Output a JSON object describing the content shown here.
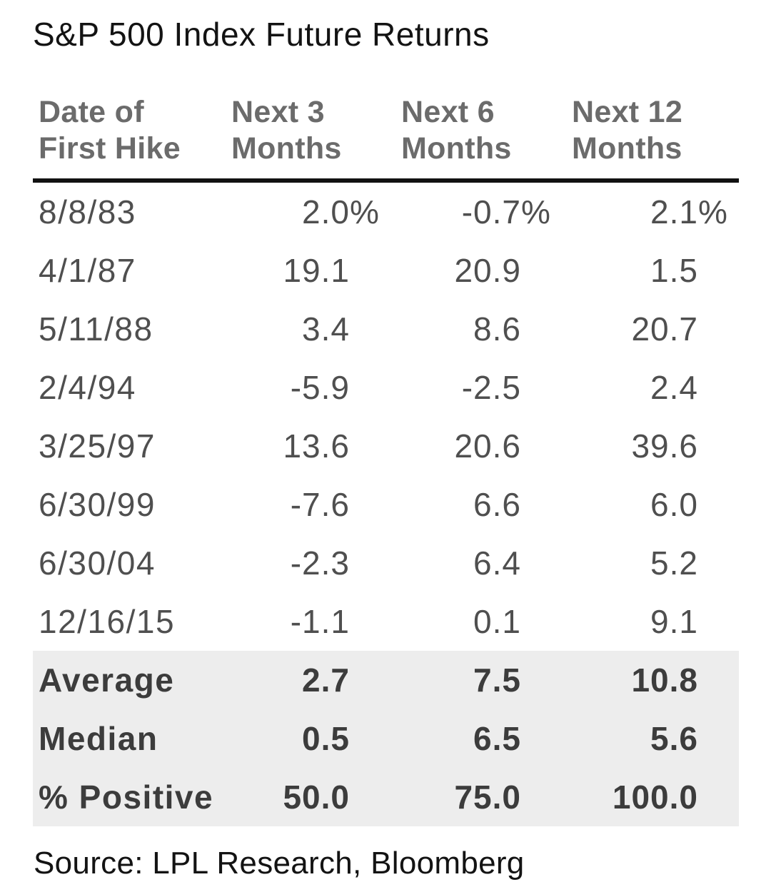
{
  "title": "S&P 500 Index Future Returns",
  "source": "Source: LPL Research, Bloomberg",
  "colors": {
    "background": "#ffffff",
    "title_text": "#131313",
    "header_text": "#6b6b6b",
    "body_text": "#4f4f4f",
    "summary_text": "#3c3c3c",
    "summary_band": "#ededed",
    "header_rule": "#111111"
  },
  "table": {
    "headers": [
      {
        "line1": "Date of",
        "line2": "First Hike"
      },
      {
        "line1": "Next 3",
        "line2": "Months"
      },
      {
        "line1": "Next 6",
        "line2": "Months"
      },
      {
        "line1": "Next 12",
        "line2": "Months"
      }
    ],
    "rows": [
      {
        "date": "8/8/83",
        "v1": "2.0",
        "v2": "-0.7",
        "v3": "2.1",
        "suffix": "%"
      },
      {
        "date": "4/1/87",
        "v1": "19.1",
        "v2": "20.9",
        "v3": "1.5",
        "suffix": ""
      },
      {
        "date": "5/11/88",
        "v1": "3.4",
        "v2": "8.6",
        "v3": "20.7",
        "suffix": ""
      },
      {
        "date": "2/4/94",
        "v1": "-5.9",
        "v2": "-2.5",
        "v3": "2.4",
        "suffix": ""
      },
      {
        "date": "3/25/97",
        "v1": "13.6",
        "v2": "20.6",
        "v3": "39.6",
        "suffix": ""
      },
      {
        "date": "6/30/99",
        "v1": "-7.6",
        "v2": "6.6",
        "v3": "6.0",
        "suffix": ""
      },
      {
        "date": "6/30/04",
        "v1": "-2.3",
        "v2": "6.4",
        "v3": "5.2",
        "suffix": ""
      },
      {
        "date": "12/16/15",
        "v1": "-1.1",
        "v2": "0.1",
        "v3": "9.1",
        "suffix": ""
      }
    ],
    "summary": [
      {
        "label": "Average",
        "v1": "2.7",
        "v2": "7.5",
        "v3": "10.8",
        "suffix": ""
      },
      {
        "label": "Median",
        "v1": "0.5",
        "v2": "6.5",
        "v3": "5.6",
        "suffix": ""
      },
      {
        "label": "% Positive",
        "v1": "50.0",
        "v2": "75.0",
        "v3": "100.0",
        "suffix": ""
      }
    ]
  },
  "chart_data": {
    "type": "table",
    "title": "S&P 500 Index Future Returns",
    "units": "percent",
    "columns": [
      "Date of First Hike",
      "Next 3 Months",
      "Next 6 Months",
      "Next 12 Months"
    ],
    "rows": [
      [
        "8/8/83",
        2.0,
        -0.7,
        2.1
      ],
      [
        "4/1/87",
        19.1,
        20.9,
        1.5
      ],
      [
        "5/11/88",
        3.4,
        8.6,
        20.7
      ],
      [
        "2/4/94",
        -5.9,
        -2.5,
        2.4
      ],
      [
        "3/25/97",
        13.6,
        20.6,
        39.6
      ],
      [
        "6/30/99",
        -7.6,
        6.6,
        6.0
      ],
      [
        "6/30/04",
        -2.3,
        6.4,
        5.2
      ],
      [
        "12/16/15",
        -1.1,
        0.1,
        9.1
      ]
    ],
    "summary_rows": [
      [
        "Average",
        2.7,
        7.5,
        10.8
      ],
      [
        "Median",
        0.5,
        6.5,
        5.6
      ],
      [
        "% Positive",
        50.0,
        75.0,
        100.0
      ]
    ],
    "source": "Source: LPL Research, Bloomberg"
  }
}
